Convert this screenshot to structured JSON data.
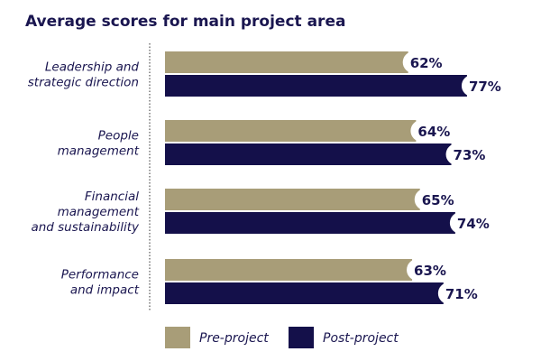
{
  "chart_data": {
    "type": "bar",
    "orientation": "horizontal",
    "title": "Average scores for main project area",
    "categories": [
      [
        "Leadership and",
        "strategic direction"
      ],
      [
        "People",
        "management"
      ],
      [
        "Financial",
        "management",
        "and sustainability"
      ],
      [
        "Performance",
        "and impact"
      ]
    ],
    "series": [
      {
        "name": "Pre-project",
        "values": [
          62,
          64,
          65,
          63
        ],
        "color": "#a89d78"
      },
      {
        "name": "Post-project",
        "values": [
          77,
          73,
          74,
          71
        ],
        "color": "#14104a"
      }
    ],
    "value_suffix": "%",
    "legend_position": "bottom",
    "grid": false
  }
}
